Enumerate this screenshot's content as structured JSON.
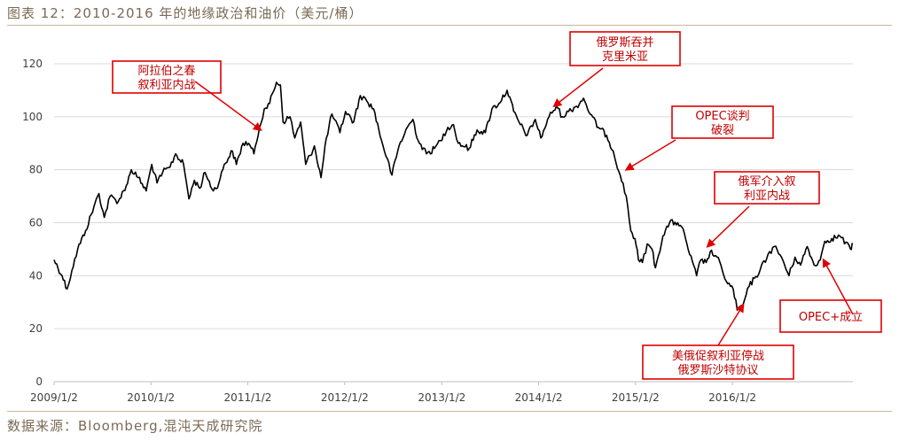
{
  "title": "图表 12：2010-2016 年的地缘政治和油价（美元/桶）",
  "source": "数据来源：Bloomberg,混沌天成研究院",
  "chart_data": {
    "type": "line",
    "title": "图表 12：2010-2016 年的地缘政治和油价（美元/桶）",
    "xlabel": "",
    "ylabel": "",
    "ylim": [
      0,
      120
    ],
    "yticks": [
      0,
      20,
      40,
      60,
      80,
      100,
      120
    ],
    "xlim": [
      "2009-01-02",
      "2017-03-31"
    ],
    "xticks": [
      {
        "date": "2009-01-02",
        "label": "2009/1/2"
      },
      {
        "date": "2010-01-02",
        "label": "2010/1/2"
      },
      {
        "date": "2011-01-02",
        "label": "2011/1/2"
      },
      {
        "date": "2012-01-02",
        "label": "2012/1/2"
      },
      {
        "date": "2013-01-02",
        "label": "2013/1/2"
      },
      {
        "date": "2014-01-02",
        "label": "2014/1/2"
      },
      {
        "date": "2015-01-02",
        "label": "2015/1/2"
      },
      {
        "date": "2016-01-02",
        "label": "2016/1/2"
      }
    ],
    "grid": true,
    "legend": "none",
    "series": [
      {
        "color": "#000000",
        "points": [
          [
            "2009-01-02",
            46
          ],
          [
            "2009-02-01",
            40
          ],
          [
            "2009-02-20",
            35
          ],
          [
            "2009-03-10",
            42
          ],
          [
            "2009-04-01",
            50
          ],
          [
            "2009-05-01",
            57
          ],
          [
            "2009-06-01",
            66
          ],
          [
            "2009-06-20",
            71
          ],
          [
            "2009-07-10",
            62
          ],
          [
            "2009-08-01",
            70
          ],
          [
            "2009-09-01",
            68
          ],
          [
            "2009-10-01",
            74
          ],
          [
            "2009-10-20",
            80
          ],
          [
            "2009-11-15",
            77
          ],
          [
            "2009-12-15",
            72
          ],
          [
            "2010-01-05",
            82
          ],
          [
            "2010-01-25",
            75
          ],
          [
            "2010-02-15",
            79
          ],
          [
            "2010-03-15",
            81
          ],
          [
            "2010-04-05",
            86
          ],
          [
            "2010-05-05",
            82
          ],
          [
            "2010-05-25",
            69
          ],
          [
            "2010-06-15",
            76
          ],
          [
            "2010-07-05",
            73
          ],
          [
            "2010-07-25",
            79
          ],
          [
            "2010-08-25",
            72
          ],
          [
            "2010-09-15",
            75
          ],
          [
            "2010-10-05",
            82
          ],
          [
            "2010-11-05",
            87
          ],
          [
            "2010-11-20",
            82
          ],
          [
            "2010-12-15",
            90
          ],
          [
            "2011-01-05",
            90
          ],
          [
            "2011-01-25",
            86
          ],
          [
            "2011-02-15",
            96
          ],
          [
            "2011-03-05",
            103
          ],
          [
            "2011-03-25",
            105
          ],
          [
            "2011-04-20",
            113
          ],
          [
            "2011-05-05",
            112
          ],
          [
            "2011-05-15",
            98
          ],
          [
            "2011-06-10",
            100
          ],
          [
            "2011-06-28",
            92
          ],
          [
            "2011-07-20",
            98
          ],
          [
            "2011-08-08",
            82
          ],
          [
            "2011-09-10",
            89
          ],
          [
            "2011-10-05",
            77
          ],
          [
            "2011-10-25",
            92
          ],
          [
            "2011-11-15",
            101
          ],
          [
            "2011-12-15",
            94
          ],
          [
            "2012-01-05",
            102
          ],
          [
            "2012-02-05",
            98
          ],
          [
            "2012-03-01",
            108
          ],
          [
            "2012-03-25",
            106
          ],
          [
            "2012-04-20",
            103
          ],
          [
            "2012-05-20",
            91
          ],
          [
            "2012-06-28",
            78
          ],
          [
            "2012-07-25",
            89
          ],
          [
            "2012-08-25",
            96
          ],
          [
            "2012-09-15",
            99
          ],
          [
            "2012-10-05",
            91
          ],
          [
            "2012-11-05",
            86
          ],
          [
            "2012-12-05",
            88
          ],
          [
            "2012-12-28",
            91
          ],
          [
            "2013-01-25",
            96
          ],
          [
            "2013-02-15",
            97
          ],
          [
            "2013-03-05",
            90
          ],
          [
            "2013-04-15",
            88
          ],
          [
            "2013-05-15",
            95
          ],
          [
            "2013-06-15",
            94
          ],
          [
            "2013-07-10",
            103
          ],
          [
            "2013-08-05",
            105
          ],
          [
            "2013-09-05",
            110
          ],
          [
            "2013-09-30",
            102
          ],
          [
            "2013-10-25",
            97
          ],
          [
            "2013-11-20",
            93
          ],
          [
            "2013-12-20",
            99
          ],
          [
            "2014-01-10",
            92
          ],
          [
            "2014-02-10",
            100
          ],
          [
            "2014-03-10",
            104
          ],
          [
            "2014-04-01",
            100
          ],
          [
            "2014-04-25",
            102
          ],
          [
            "2014-05-25",
            104
          ],
          [
            "2014-06-20",
            107
          ],
          [
            "2014-07-15",
            101
          ],
          [
            "2014-08-15",
            96
          ],
          [
            "2014-09-15",
            93
          ],
          [
            "2014-10-10",
            87
          ],
          [
            "2014-11-05",
            78
          ],
          [
            "2014-11-28",
            70
          ],
          [
            "2014-12-15",
            57
          ],
          [
            "2014-12-31",
            54
          ],
          [
            "2015-01-13",
            46
          ],
          [
            "2015-01-28",
            45
          ],
          [
            "2015-02-15",
            52
          ],
          [
            "2015-03-05",
            50
          ],
          [
            "2015-03-18",
            43
          ],
          [
            "2015-04-15",
            55
          ],
          [
            "2015-05-10",
            60
          ],
          [
            "2015-06-10",
            60
          ],
          [
            "2015-07-05",
            56
          ],
          [
            "2015-07-25",
            48
          ],
          [
            "2015-08-20",
            40
          ],
          [
            "2015-09-05",
            46
          ],
          [
            "2015-09-25",
            45
          ],
          [
            "2015-10-10",
            49
          ],
          [
            "2015-11-05",
            47
          ],
          [
            "2015-11-25",
            42
          ],
          [
            "2015-12-15",
            37
          ],
          [
            "2016-01-05",
            35
          ],
          [
            "2016-01-20",
            27
          ],
          [
            "2016-02-11",
            29
          ],
          [
            "2016-03-05",
            36
          ],
          [
            "2016-03-25",
            39
          ],
          [
            "2016-04-15",
            42
          ],
          [
            "2016-05-15",
            48
          ],
          [
            "2016-06-08",
            51
          ],
          [
            "2016-07-05",
            47
          ],
          [
            "2016-08-02",
            40
          ],
          [
            "2016-08-25",
            47
          ],
          [
            "2016-09-15",
            44
          ],
          [
            "2016-10-10",
            51
          ],
          [
            "2016-11-05",
            44
          ],
          [
            "2016-11-28",
            46
          ],
          [
            "2016-12-15",
            53
          ],
          [
            "2017-01-10",
            54
          ],
          [
            "2017-02-10",
            55
          ],
          [
            "2017-03-22",
            50
          ],
          [
            "2017-03-31",
            52
          ]
        ]
      }
    ],
    "annotations": [
      {
        "lines": [
          "阿拉伯之春",
          "叙利亚内战"
        ],
        "target": [
          "2011-02-20",
          95
        ]
      },
      {
        "lines": [
          "俄罗斯吞并",
          "克里米亚"
        ],
        "target": [
          "2014-03-01",
          104
        ]
      },
      {
        "lines": [
          "OPEC谈判",
          "破裂"
        ],
        "target": [
          "2014-11-28",
          80
        ]
      },
      {
        "lines": [
          "俄军介入叙",
          "利亚内战"
        ],
        "target": [
          "2015-09-30",
          51
        ]
      },
      {
        "lines": [
          "OPEC+成立"
        ],
        "target": [
          "2016-12-10",
          46
        ]
      },
      {
        "lines": [
          "美俄促叙利亚停战",
          "俄罗斯沙特协议"
        ],
        "target": [
          "2016-02-12",
          29
        ]
      }
    ]
  }
}
